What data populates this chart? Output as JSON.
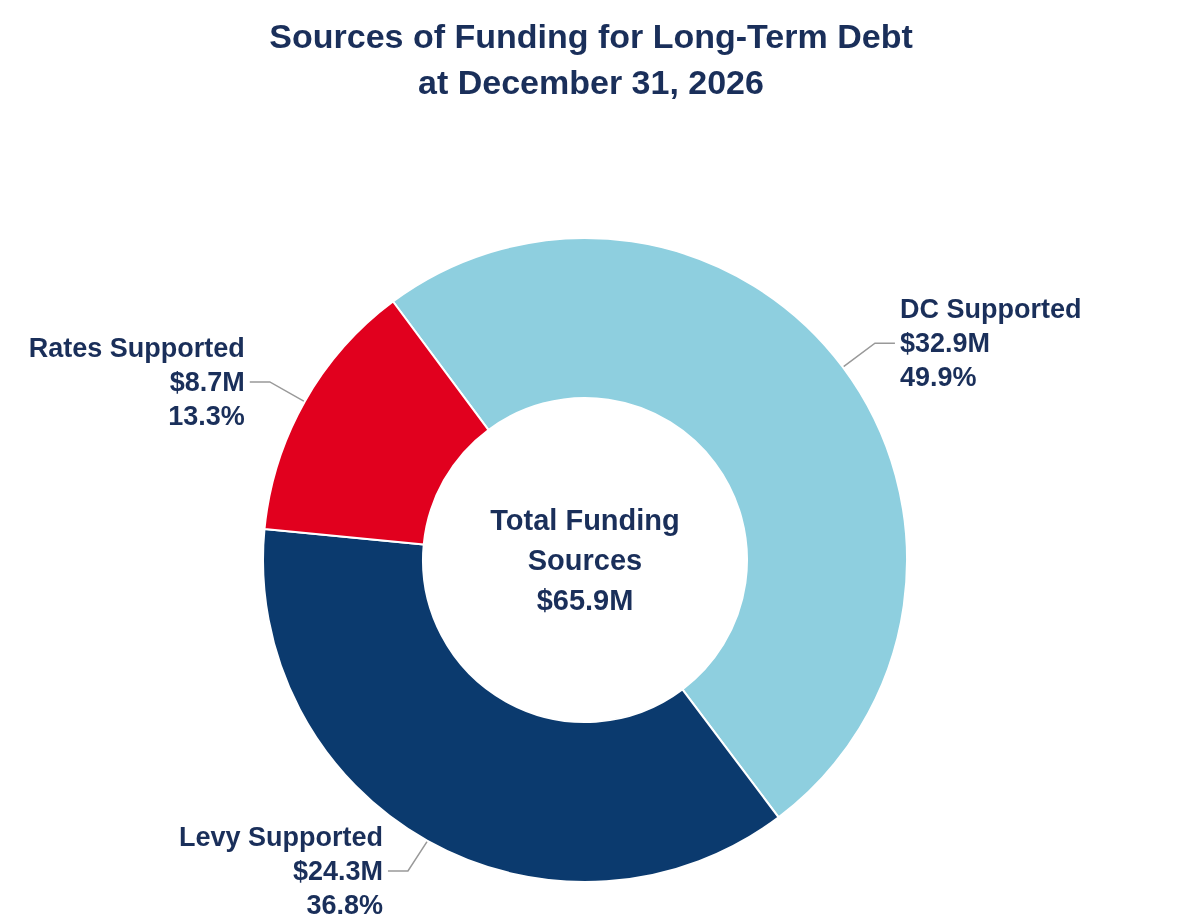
{
  "chart_data": {
    "type": "donut",
    "title": "Sources of Funding for Long-Term Debt\nat December 31, 2026",
    "categories": [
      "DC Supported",
      "Levy Supported",
      "Rates Supported"
    ],
    "values": [
      49.9,
      36.8,
      13.3
    ],
    "colors": [
      "#8ecfdf",
      "#0b3a6e",
      "#e1001e"
    ],
    "value_labels": [
      "$32.9M\n49.9%",
      "$24.3M\n36.8%",
      "$8.7M\n13.3%"
    ],
    "annotations": [
      "Total Funding\nSources\n$65.9M"
    ],
    "legend": false
  }
}
